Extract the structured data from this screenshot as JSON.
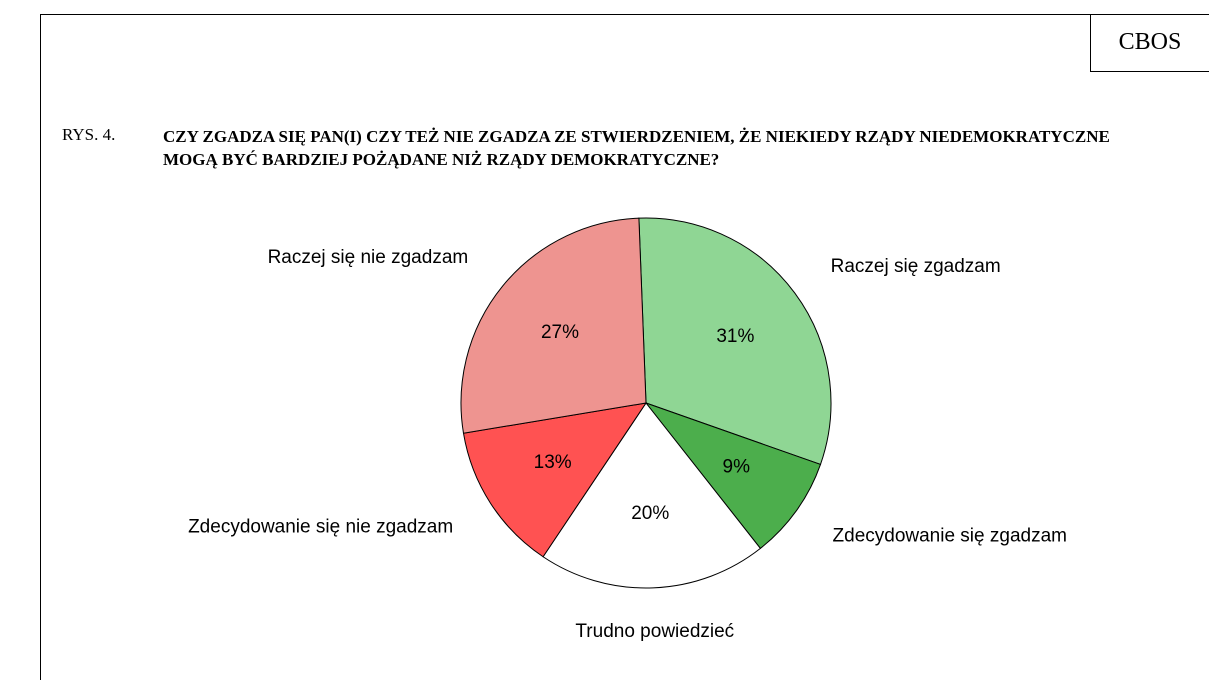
{
  "chart_data": {
    "type": "pie",
    "badge": "CBOS",
    "figure_label": "RYS. 4.",
    "title": "CZY ZGADZA SIĘ PAN(I) CZY TEŻ NIE ZGADZA ZE STWIERDZENIEM, ŻE NIEKIEDY RZĄDY NIEDEMOKRATYCZNE MOGĄ BYĆ BARDZIEJ POŻĄDANE NIŻ RZĄDY DEMOKRATYCZNE?",
    "categories": [
      "Raczej się zgadzam",
      "Zdecydowanie się zgadzam",
      "Trudno powiedzieć",
      "Zdecydowanie się nie zgadzam",
      "Raczej się nie zgadzam"
    ],
    "values": [
      31,
      9,
      20,
      13,
      27
    ],
    "value_labels": [
      "31%",
      "9%",
      "20%",
      "13%",
      "27%"
    ],
    "colors": [
      "#8fd694",
      "#4cae4c",
      "#ffffff",
      "#ff5252",
      "#ee9490"
    ]
  }
}
